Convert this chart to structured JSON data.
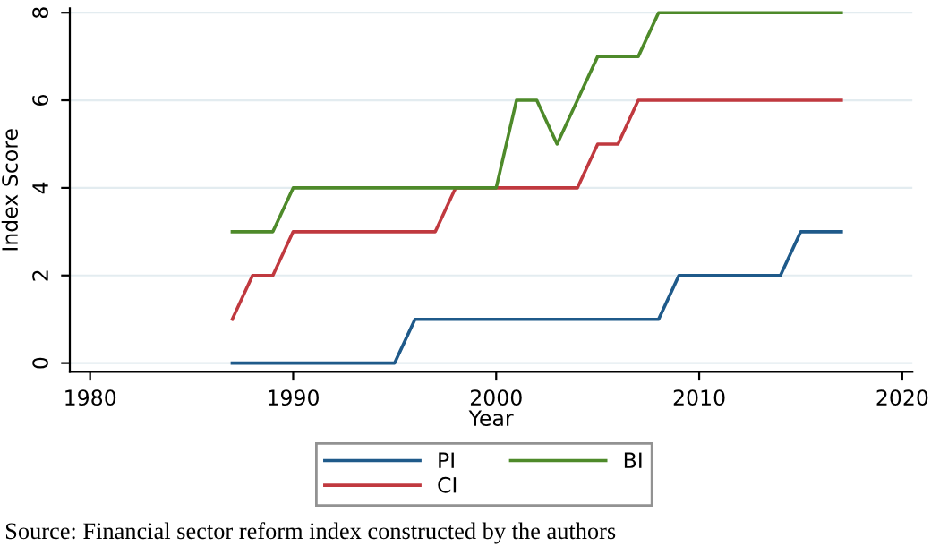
{
  "chart_data": {
    "type": "line",
    "xlabel": "Year",
    "ylabel": "Index Score",
    "x": [
      1987,
      1988,
      1989,
      1990,
      1991,
      1992,
      1993,
      1994,
      1995,
      1996,
      1997,
      1998,
      1999,
      2000,
      2001,
      2002,
      2003,
      2004,
      2005,
      2006,
      2007,
      2008,
      2009,
      2010,
      2011,
      2012,
      2013,
      2014,
      2015,
      2016,
      2017
    ],
    "series": [
      {
        "name": "PI",
        "color": "#1f5a8a",
        "values": [
          0,
          0,
          0,
          0,
          0,
          0,
          0,
          0,
          0,
          1,
          1,
          1,
          1,
          1,
          1,
          1,
          1,
          1,
          1,
          1,
          1,
          1,
          2,
          2,
          2,
          2,
          2,
          2,
          3,
          3,
          3
        ]
      },
      {
        "name": "CI",
        "color": "#c0393f",
        "values": [
          1,
          2,
          2,
          3,
          3,
          3,
          3,
          3,
          3,
          3,
          3,
          4,
          4,
          4,
          4,
          4,
          4,
          4,
          5,
          5,
          6,
          6,
          6,
          6,
          6,
          6,
          6,
          6,
          6,
          6,
          6
        ]
      },
      {
        "name": "BI",
        "color": "#4e8a2a",
        "values": [
          3,
          3,
          3,
          4,
          4,
          4,
          4,
          4,
          4,
          4,
          4,
          4,
          4,
          4,
          6,
          6,
          5,
          6,
          7,
          7,
          7,
          8,
          8,
          8,
          8,
          8,
          8,
          8,
          8,
          8,
          8
        ]
      }
    ],
    "xlim": [
      1979,
      2020.5
    ],
    "xticks": [
      1980,
      1990,
      2000,
      2010,
      2020
    ],
    "ylim": [
      -0.2,
      8.1
    ],
    "yticks": [
      0,
      2,
      4,
      6,
      8
    ],
    "grid": "y",
    "legend": "bottom",
    "marker": "none",
    "line_style": "solid",
    "annotations": [
      "Source: Financial sector reform index constructed by the authors"
    ]
  }
}
